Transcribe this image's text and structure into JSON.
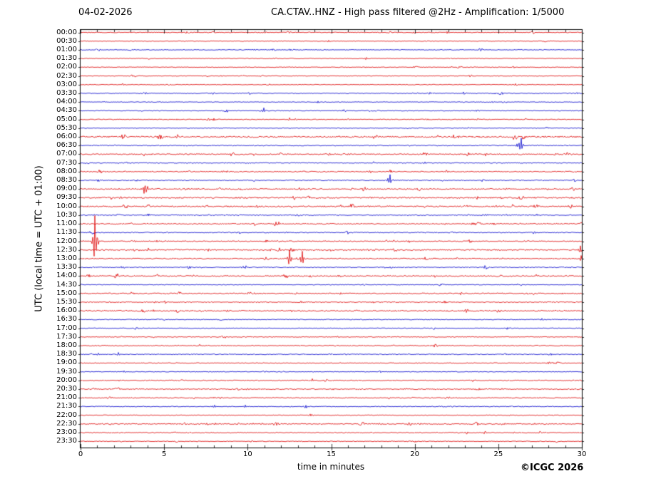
{
  "header": {
    "date": "04-02-2026",
    "title": "CA.CTAV..HNZ - High pass filtered @2Hz - Amplification: 1/5000"
  },
  "axes": {
    "y_label": "UTC (local time = UTC + 01:00)",
    "x_label": "time in minutes",
    "x_ticks": [
      0,
      5,
      10,
      15,
      20,
      25,
      30
    ],
    "x_minor_step": 1,
    "x_range": [
      0,
      30
    ]
  },
  "footer": {
    "copyright": "©ICGC 2026"
  },
  "chart_data": {
    "type": "line",
    "subtype": "helicorder-dayplot",
    "station": "CA.CTAV..HNZ",
    "filter": "High pass filtered @2Hz",
    "amplification": "1/5000",
    "date": "04-02-2026",
    "minutes_per_line": 30,
    "lines": 48,
    "colors": {
      "red": "#dd0000",
      "blue": "#0000cc",
      "axis": "#000000"
    },
    "rows": [
      {
        "label": "00:00",
        "color": "red",
        "act": 0.5,
        "events": []
      },
      {
        "label": "00:30",
        "color": "red",
        "act": 0.45,
        "events": []
      },
      {
        "label": "01:00",
        "color": "blue",
        "act": 0.5,
        "events": [
          [
            10.4,
            1.5
          ]
        ]
      },
      {
        "label": "01:30",
        "color": "red",
        "act": 0.45,
        "events": []
      },
      {
        "label": "02:00",
        "color": "red",
        "act": 0.5,
        "events": []
      },
      {
        "label": "02:30",
        "color": "red",
        "act": 0.45,
        "events": []
      },
      {
        "label": "03:00",
        "color": "red",
        "act": 0.45,
        "events": []
      },
      {
        "label": "03:30",
        "color": "blue",
        "act": 0.5,
        "events": [
          [
            20.9,
            2
          ]
        ]
      },
      {
        "label": "04:00",
        "color": "blue",
        "act": 0.45,
        "events": [
          [
            24.6,
            1.5
          ]
        ]
      },
      {
        "label": "04:30",
        "color": "blue",
        "act": 0.5,
        "events": [
          [
            10.95,
            5
          ]
        ]
      },
      {
        "label": "05:00",
        "color": "red",
        "act": 0.55,
        "events": [
          [
            12.5,
            3
          ],
          [
            12.85,
            2.5
          ]
        ]
      },
      {
        "label": "05:30",
        "color": "blue",
        "act": 0.45,
        "events": []
      },
      {
        "label": "06:00",
        "color": "red",
        "act": 1.0,
        "events": []
      },
      {
        "label": "06:30",
        "color": "blue",
        "act": 0.6,
        "events": [
          [
            26.35,
            16
          ],
          [
            26.1,
            3
          ]
        ]
      },
      {
        "label": "07:00",
        "color": "red",
        "act": 0.8,
        "events": [
          [
            14.9,
            2.5
          ],
          [
            15.2,
            2
          ],
          [
            16.0,
            1.5
          ]
        ]
      },
      {
        "label": "07:30",
        "color": "blue",
        "act": 0.6,
        "events": [
          [
            20.6,
            1.8
          ]
        ]
      },
      {
        "label": "08:00",
        "color": "red",
        "act": 0.7,
        "events": [
          [
            8.55,
            2.2
          ],
          [
            8.8,
            1.8
          ]
        ]
      },
      {
        "label": "08:30",
        "color": "blue",
        "act": 0.55,
        "events": [
          [
            18.5,
            12
          ],
          [
            18.7,
            3
          ]
        ]
      },
      {
        "label": "09:00",
        "color": "red",
        "act": 0.8,
        "events": [
          [
            3.85,
            13
          ],
          [
            4.0,
            4
          ],
          [
            2.3,
            1.8
          ]
        ]
      },
      {
        "label": "09:30",
        "color": "red",
        "act": 0.9,
        "events": [
          [
            2.4,
            1.8
          ]
        ]
      },
      {
        "label": "10:00",
        "color": "red",
        "act": 0.9,
        "events": []
      },
      {
        "label": "10:30",
        "color": "blue",
        "act": 0.6,
        "events": [
          [
            24.35,
            2.2
          ],
          [
            0.8,
            1.5
          ]
        ]
      },
      {
        "label": "11:00",
        "color": "red",
        "act": 0.7,
        "events": [
          [
            26.3,
            1.8
          ]
        ]
      },
      {
        "label": "11:30",
        "color": "blue",
        "act": 0.6,
        "events": [
          [
            12.3,
            1.8
          ]
        ]
      },
      {
        "label": "12:00",
        "color": "red",
        "act": 0.7,
        "events": [
          [
            0.85,
            44
          ],
          [
            1.0,
            8
          ]
        ]
      },
      {
        "label": "12:30",
        "color": "red",
        "act": 0.8,
        "events": [
          [
            4.05,
            2.5
          ],
          [
            29.9,
            7
          ]
        ]
      },
      {
        "label": "13:00",
        "color": "red",
        "act": 0.7,
        "events": [
          [
            12.5,
            15
          ],
          [
            13.25,
            15
          ],
          [
            29.95,
            5
          ]
        ]
      },
      {
        "label": "13:30",
        "color": "blue",
        "act": 0.6,
        "events": [
          [
            9.7,
            3.5
          ],
          [
            9.9,
            2.5
          ],
          [
            24.2,
            4
          ]
        ]
      },
      {
        "label": "14:00",
        "color": "red",
        "act": 0.75,
        "events": [
          [
            2.2,
            2.5
          ],
          [
            25.7,
            1.5
          ]
        ]
      },
      {
        "label": "14:30",
        "color": "blue",
        "act": 0.5,
        "events": []
      },
      {
        "label": "15:00",
        "color": "red",
        "act": 0.7,
        "events": [
          [
            22.8,
            3
          ],
          [
            24.6,
            1.8
          ]
        ]
      },
      {
        "label": "15:30",
        "color": "red",
        "act": 0.6,
        "events": []
      },
      {
        "label": "16:00",
        "color": "red",
        "act": 0.8,
        "events": [
          [
            4.2,
            2
          ],
          [
            8.8,
            1.8
          ]
        ]
      },
      {
        "label": "16:30",
        "color": "blue",
        "act": 0.55,
        "events": []
      },
      {
        "label": "17:00",
        "color": "blue",
        "act": 0.5,
        "events": []
      },
      {
        "label": "17:30",
        "color": "red",
        "act": 0.55,
        "events": []
      },
      {
        "label": "18:00",
        "color": "red",
        "act": 0.6,
        "events": []
      },
      {
        "label": "18:30",
        "color": "blue",
        "act": 0.55,
        "events": [
          [
            1.05,
            2.5
          ],
          [
            2.25,
            3.5
          ]
        ]
      },
      {
        "label": "19:00",
        "color": "red",
        "act": 0.55,
        "events": [
          [
            28.05,
            4
          ]
        ]
      },
      {
        "label": "19:30",
        "color": "blue",
        "act": 0.5,
        "events": [
          [
            2.6,
            1.5
          ]
        ]
      },
      {
        "label": "20:00",
        "color": "red",
        "act": 0.6,
        "events": [
          [
            13.85,
            2.8
          ]
        ]
      },
      {
        "label": "20:30",
        "color": "red",
        "act": 0.65,
        "events": []
      },
      {
        "label": "21:00",
        "color": "red",
        "act": 0.6,
        "events": []
      },
      {
        "label": "21:30",
        "color": "blue",
        "act": 0.55,
        "events": [
          [
            8.0,
            2.5
          ],
          [
            9.85,
            3
          ]
        ]
      },
      {
        "label": "22:00",
        "color": "red",
        "act": 0.5,
        "events": []
      },
      {
        "label": "22:30",
        "color": "red",
        "act": 0.7,
        "events": [
          [
            10.85,
            1.8
          ]
        ]
      },
      {
        "label": "23:00",
        "color": "red",
        "act": 0.6,
        "events": []
      },
      {
        "label": "23:30",
        "color": "red",
        "act": 0.5,
        "events": []
      }
    ]
  }
}
